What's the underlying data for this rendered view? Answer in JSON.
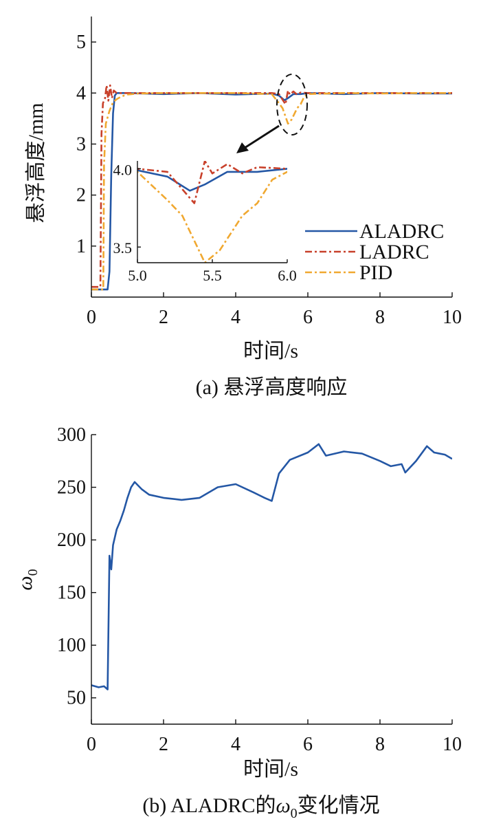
{
  "chart_data": [
    {
      "type": "line",
      "caption": "(a) 悬浮高度响应",
      "xlabel": "时间/s",
      "ylabel": "悬浮高度/mm",
      "xlim": [
        0,
        10
      ],
      "ylim": [
        0,
        5.5
      ],
      "xticks": [
        "0",
        "2",
        "4",
        "6",
        "8",
        "10"
      ],
      "yticks": [
        "1",
        "2",
        "3",
        "4",
        "5"
      ],
      "legend_position": "bottom-right",
      "grid": false,
      "series": [
        {
          "name": "ALADRC",
          "color": "#2457a5",
          "style": "solid",
          "x": [
            0,
            0.45,
            0.5,
            0.55,
            0.6,
            0.65,
            0.7,
            1.0,
            2.0,
            3.0,
            4.0,
            5.0,
            5.2,
            5.35,
            5.45,
            5.6,
            5.8,
            6.0,
            7.0,
            8.0,
            9.0,
            10.0
          ],
          "y": [
            0.15,
            0.15,
            0.5,
            2.4,
            3.6,
            3.95,
            4.0,
            4.0,
            3.98,
            4.0,
            3.97,
            3.99,
            3.95,
            3.86,
            3.9,
            3.98,
            3.98,
            4.0,
            3.98,
            4.0,
            3.99,
            3.99
          ]
        },
        {
          "name": "LADRC",
          "color": "#c8402a",
          "style": "dashdot",
          "x": [
            0,
            0.25,
            0.28,
            0.32,
            0.38,
            0.42,
            0.47,
            0.52,
            0.57,
            0.62,
            0.7,
            1.0,
            2.0,
            3.0,
            4.0,
            5.0,
            5.2,
            5.38,
            5.45,
            5.5,
            5.6,
            5.7,
            5.8,
            6.0,
            7.0,
            8.0,
            9.0,
            10.0
          ],
          "y": [
            0.2,
            0.2,
            3.2,
            3.8,
            3.9,
            4.15,
            3.85,
            4.15,
            3.9,
            4.05,
            4.0,
            4.0,
            4.0,
            4.0,
            4.0,
            4.0,
            3.98,
            3.78,
            4.05,
            3.97,
            4.03,
            3.97,
            4.01,
            4.0,
            4.0,
            4.0,
            4.0,
            4.0
          ]
        },
        {
          "name": "PID",
          "color": "#f0a830",
          "style": "dashdot",
          "x": [
            0,
            0.33,
            0.35,
            0.4,
            0.5,
            0.6,
            0.7,
            0.8,
            0.9,
            1.0,
            1.3,
            2.0,
            4.0,
            5.0,
            5.2,
            5.3,
            5.45,
            5.55,
            5.7,
            5.8,
            5.9,
            6.0,
            7.0,
            8.0,
            9.0,
            10.0
          ],
          "y": [
            0.15,
            0.15,
            2.6,
            3.4,
            3.65,
            3.82,
            3.88,
            3.92,
            3.95,
            3.97,
            3.99,
            4.0,
            4.0,
            3.98,
            3.8,
            3.7,
            3.4,
            3.48,
            3.7,
            3.78,
            3.93,
            3.98,
            4.0,
            3.99,
            4.0,
            4.0
          ]
        }
      ],
      "inset": {
        "xlim": [
          5.0,
          6.0
        ],
        "ylim": [
          3.4,
          4.05
        ],
        "xticks": [
          "5.0",
          "5.5",
          "6.0"
        ],
        "yticks": [
          "3.5",
          "4.0"
        ]
      }
    },
    {
      "type": "line",
      "caption_parts": [
        "(b) ALADRC的",
        "ω",
        "0",
        "变化情况"
      ],
      "xlabel": "时间/s",
      "ylabel": [
        "ω",
        "0"
      ],
      "xlim": [
        0,
        10
      ],
      "ylim": [
        25,
        300
      ],
      "xticks": [
        "0",
        "2",
        "4",
        "6",
        "8",
        "10"
      ],
      "yticks": [
        "50",
        "100",
        "150",
        "200",
        "250",
        "300"
      ],
      "grid": false,
      "series": [
        {
          "color": "#2457a5",
          "x": [
            0,
            0.2,
            0.35,
            0.45,
            0.5,
            0.55,
            0.6,
            0.7,
            0.8,
            0.9,
            1.0,
            1.1,
            1.2,
            1.4,
            1.6,
            2.0,
            2.5,
            3.0,
            3.5,
            4.0,
            4.5,
            4.8,
            5.0,
            5.2,
            5.5,
            6.0,
            6.3,
            6.5,
            7.0,
            7.5,
            8.0,
            8.3,
            8.6,
            8.7,
            9.0,
            9.3,
            9.5,
            9.8,
            10.0
          ],
          "y": [
            62,
            60,
            61,
            58,
            185,
            172,
            195,
            210,
            218,
            228,
            240,
            250,
            255,
            248,
            243,
            240,
            238,
            240,
            250,
            253,
            245,
            240,
            237,
            263,
            276,
            283,
            291,
            280,
            284,
            282,
            275,
            270,
            272,
            264,
            275,
            289,
            283,
            281,
            277
          ]
        }
      ]
    }
  ]
}
